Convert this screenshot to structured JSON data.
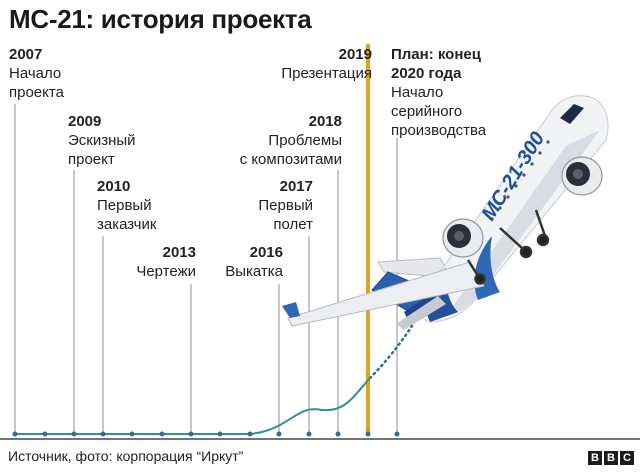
{
  "title": "МС-21: история проекта",
  "milestones": [
    {
      "year": "2007",
      "lines": [
        "Начало",
        "проекта"
      ]
    },
    {
      "year": "2009",
      "lines": [
        "Эскизный",
        "проект"
      ]
    },
    {
      "year": "2010",
      "lines": [
        "Первый",
        "заказчик"
      ]
    },
    {
      "year": "2013",
      "lines": [
        "Чертежи"
      ]
    },
    {
      "year": "2016",
      "lines": [
        "Выкатка"
      ]
    },
    {
      "year": "2017",
      "lines": [
        "Первый",
        "полет"
      ]
    },
    {
      "year": "2018",
      "lines": [
        "Проблемы",
        "с композитами"
      ]
    },
    {
      "year": "2019",
      "lines": [
        "Презентация"
      ]
    },
    {
      "year": "План: конец",
      "year2": "2020 года",
      "lines": [
        "Начало",
        "серийного",
        "производства"
      ]
    }
  ],
  "source": "Источник, фото: корпорация “Иркут”",
  "logo": [
    "B",
    "B",
    "C"
  ],
  "colors": {
    "line": "#8c8c8c",
    "accent": "#e0a21b",
    "curve": "#2f8f9d",
    "dots": "#2f6f9a"
  },
  "aircraft_tail_text": "МС-21-300"
}
